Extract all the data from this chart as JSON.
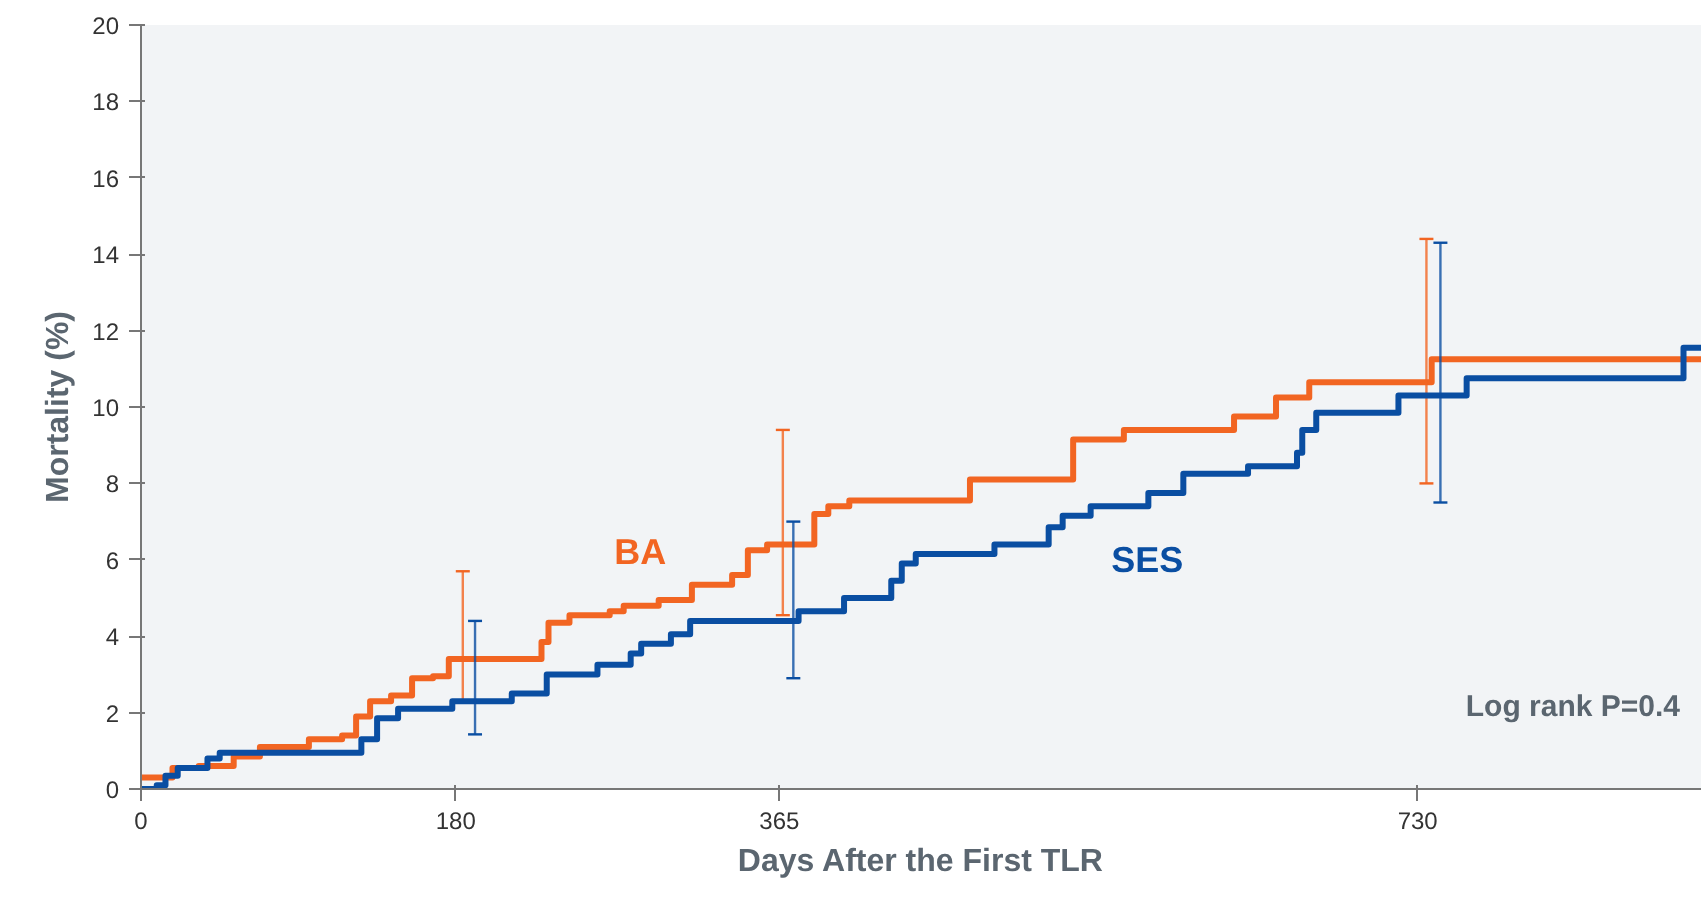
{
  "chart_data": {
    "type": "step",
    "xlabel": "Days After the First TLR",
    "ylabel": "Mortality (%)",
    "xlim": [
      0,
      892
    ],
    "ylim": [
      0,
      20
    ],
    "xticks": [
      0,
      180,
      365,
      730
    ],
    "yticks": [
      0,
      2,
      4,
      6,
      8,
      10,
      12,
      14,
      16,
      18,
      20
    ],
    "grid": false,
    "marker": "none",
    "line_style": "solid",
    "annotations": [
      "Log rank P=0.4"
    ],
    "series": [
      {
        "name": "BA",
        "color": "#f26522",
        "x": [
          0,
          18,
          33,
          53,
          68,
          96,
          115,
          123,
          131,
          143,
          155,
          167,
          176,
          184,
          229,
          233,
          245,
          268,
          276,
          296,
          315,
          338,
          347,
          358,
          367,
          385,
          393,
          405,
          474,
          533,
          562,
          625,
          649,
          668,
          735,
          738,
          892
        ],
        "values": [
          0.3,
          0.55,
          0.6,
          0.85,
          1.1,
          1.3,
          1.4,
          1.9,
          2.3,
          2.45,
          2.9,
          2.95,
          3.4,
          3.4,
          3.85,
          4.35,
          4.55,
          4.65,
          4.8,
          4.95,
          5.35,
          5.6,
          6.25,
          6.4,
          6.4,
          7.2,
          7.4,
          7.55,
          8.1,
          9.15,
          9.4,
          9.75,
          10.25,
          10.65,
          10.65,
          11.25,
          11.25
        ],
        "errors": [
          null,
          null,
          null,
          null,
          null,
          null,
          null,
          null,
          null,
          null,
          null,
          null,
          null,
          [
            2.3,
            5.7
          ],
          null,
          null,
          null,
          null,
          null,
          null,
          null,
          null,
          null,
          null,
          [
            4.55,
            9.4
          ],
          null,
          null,
          null,
          null,
          null,
          null,
          null,
          null,
          null,
          [
            8.0,
            14.4
          ],
          null,
          null
        ]
      },
      {
        "name": "SES",
        "color": "#0a4ea2",
        "x": [
          0,
          9,
          14,
          21,
          38,
          45,
          126,
          135,
          147,
          178,
          191,
          212,
          232,
          261,
          280,
          286,
          303,
          314,
          373,
          376,
          402,
          429,
          435,
          443,
          488,
          519,
          527,
          543,
          576,
          596,
          633,
          661,
          664,
          672,
          719,
          743,
          758,
          882,
          892
        ],
        "values": [
          0,
          0.1,
          0.35,
          0.55,
          0.8,
          0.95,
          1.3,
          1.85,
          2.1,
          2.3,
          2.3,
          2.5,
          3.0,
          3.25,
          3.55,
          3.8,
          4.05,
          4.4,
          4.4,
          4.65,
          5.0,
          5.45,
          5.9,
          6.15,
          6.4,
          6.85,
          7.15,
          7.4,
          7.75,
          8.25,
          8.45,
          8.8,
          9.4,
          9.85,
          10.3,
          10.3,
          10.75,
          11.55,
          11.55
        ],
        "errors": [
          null,
          null,
          null,
          null,
          null,
          null,
          null,
          null,
          null,
          null,
          [
            1.43,
            4.4
          ],
          null,
          null,
          null,
          null,
          null,
          null,
          null,
          [
            2.9,
            7.0
          ],
          null,
          null,
          null,
          null,
          null,
          null,
          null,
          null,
          null,
          null,
          null,
          null,
          null,
          null,
          null,
          null,
          [
            7.5,
            14.3
          ],
          null,
          null,
          null
        ]
      }
    ]
  }
}
